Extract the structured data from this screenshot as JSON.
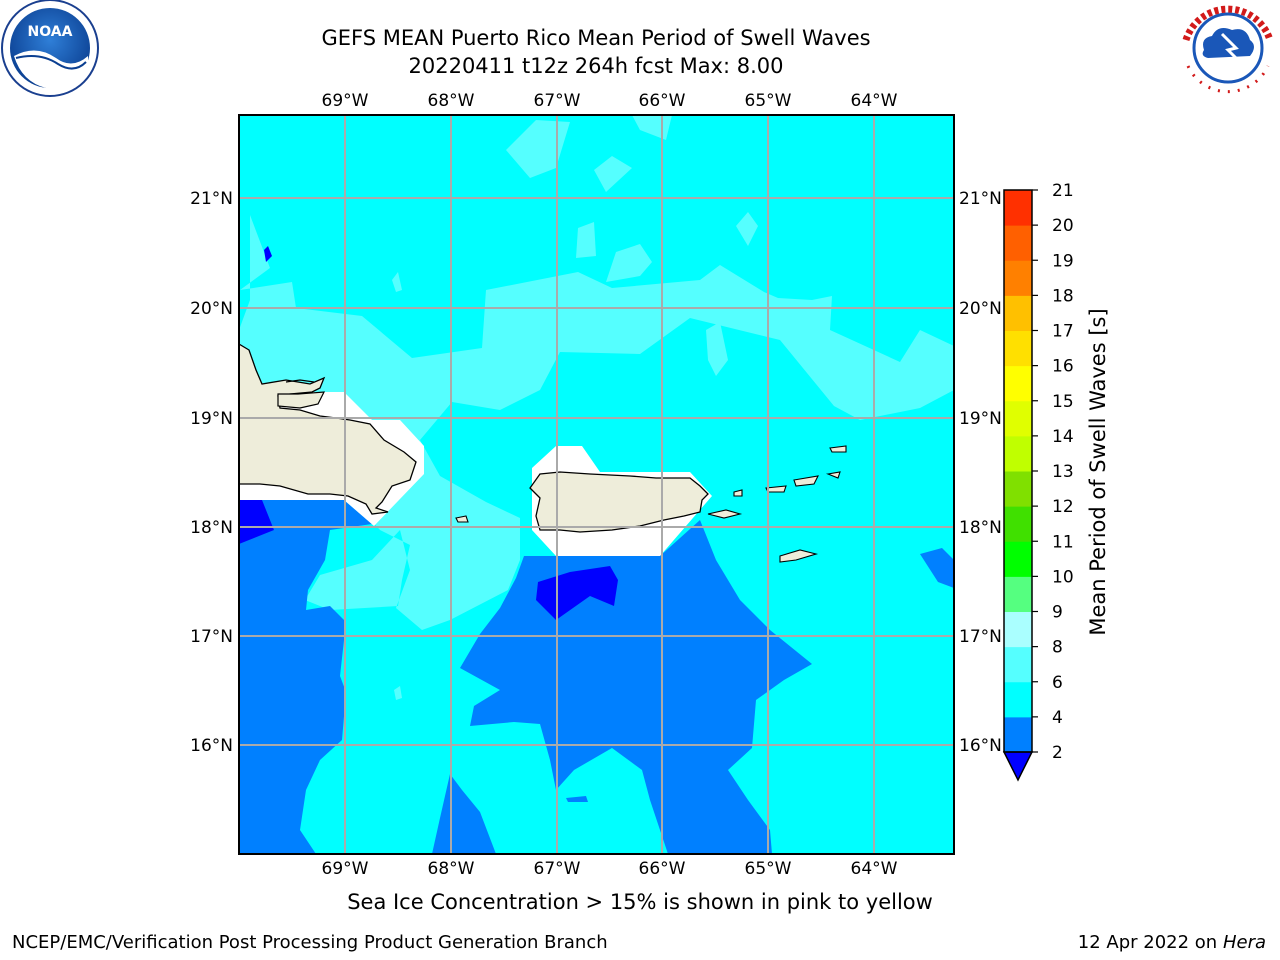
{
  "title": {
    "line1": "GEFS MEAN Puerto Rico Mean Period of Swell Waves",
    "line2": "20220411 t12z 264h fcst   Max: 8.00"
  },
  "map": {
    "lon_ticks": [
      "69°W",
      "68°W",
      "67°W",
      "66°W",
      "65°W",
      "64°W"
    ],
    "lat_ticks": [
      "21°N",
      "20°N",
      "19°N",
      "18°N",
      "17°N",
      "16°N"
    ],
    "land_color": "#eeedda",
    "fill_colors": {
      "band_2_4": "#0080ff",
      "band_4_6": "#00ffff",
      "band_6_8": "#55ffff",
      "below_2": "#0000ff",
      "no_data": "#ffffff"
    }
  },
  "colorbar": {
    "label": "Mean Period of Swell Waves [s]",
    "ticks": [
      "2",
      "4",
      "6",
      "8",
      "9",
      "10",
      "11",
      "12",
      "13",
      "14",
      "15",
      "16",
      "17",
      "18",
      "19",
      "20",
      "21"
    ],
    "colors": [
      "#0080ff",
      "#00ffff",
      "#55ffff",
      "#aaffff",
      "#55ff80",
      "#00ff00",
      "#40e000",
      "#80e000",
      "#c0ff00",
      "#e0ff00",
      "#ffff00",
      "#ffe000",
      "#ffc000",
      "#ff8000",
      "#ff6000",
      "#ff3000",
      "#ff0000"
    ],
    "under_color": "#0000ff"
  },
  "note": "Sea Ice Concentration > 15% is shown in pink to yellow",
  "footer": {
    "left": "NCEP/EMC/Verification Post Processing Product Generation Branch",
    "right_prefix": "12 Apr 2022 on ",
    "right_host": "Hera"
  },
  "logos": {
    "left": "noaa-logo",
    "right": "nws-logo"
  }
}
